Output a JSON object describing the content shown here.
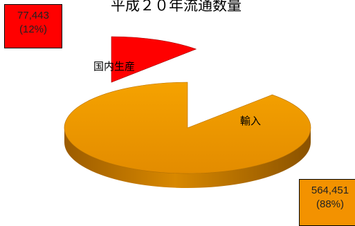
{
  "chart_data": {
    "type": "pie",
    "title": "平成２０年流通数量",
    "slices": [
      {
        "label": "国内生産",
        "value": 77443,
        "value_text": "77,443",
        "percent_text": "(12%)",
        "color": "#ff0000",
        "side_color": "#7a0000"
      },
      {
        "label": "輸入",
        "value": 564451,
        "value_text": "564,451",
        "percent_text": "(88%)",
        "color": "#ec9400",
        "side_color": "#b06800"
      }
    ]
  }
}
